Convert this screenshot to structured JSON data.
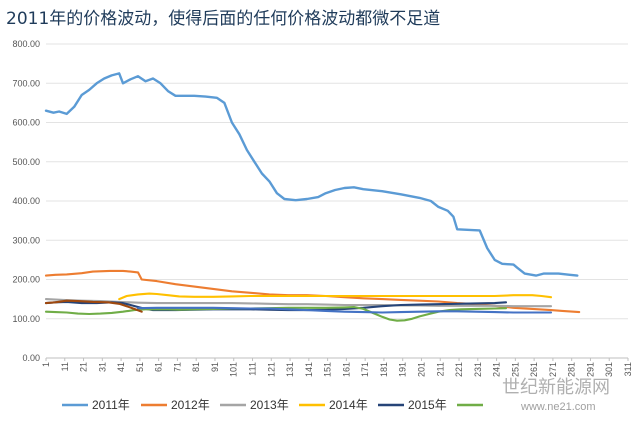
{
  "chart_data": {
    "type": "line",
    "title": "2011年的价格波动，使得后面的任何价格波动都微不足道",
    "xlabel": "",
    "ylabel": "",
    "ylim": [
      0,
      800
    ],
    "y_ticks": [
      "0.00",
      "100.00",
      "200.00",
      "300.00",
      "400.00",
      "500.00",
      "600.00",
      "700.00",
      "800.00"
    ],
    "xlim": [
      1,
      311
    ],
    "x_ticks": [
      "1",
      "11",
      "21",
      "31",
      "41",
      "51",
      "61",
      "71",
      "81",
      "91",
      "101",
      "111",
      "121",
      "131",
      "141",
      "151",
      "161",
      "171",
      "181",
      "191",
      "201",
      "211",
      "221",
      "231",
      "241",
      "251",
      "261",
      "271",
      "281",
      "291",
      "301",
      "311"
    ],
    "grid": "horizontal",
    "legend": "bottom",
    "series": [
      {
        "name": "2011年",
        "color": "#5b9bd5",
        "points": [
          [
            1,
            630
          ],
          [
            5,
            625
          ],
          [
            8,
            628
          ],
          [
            12,
            622
          ],
          [
            16,
            640
          ],
          [
            20,
            670
          ],
          [
            24,
            683
          ],
          [
            28,
            700
          ],
          [
            32,
            712
          ],
          [
            36,
            720
          ],
          [
            40,
            725
          ],
          [
            42,
            700
          ],
          [
            46,
            710
          ],
          [
            50,
            718
          ],
          [
            54,
            705
          ],
          [
            58,
            712
          ],
          [
            62,
            700
          ],
          [
            66,
            680
          ],
          [
            70,
            668
          ],
          [
            80,
            668
          ],
          [
            86,
            666
          ],
          [
            92,
            663
          ],
          [
            96,
            650
          ],
          [
            100,
            600
          ],
          [
            104,
            570
          ],
          [
            108,
            530
          ],
          [
            112,
            500
          ],
          [
            116,
            470
          ],
          [
            120,
            450
          ],
          [
            124,
            420
          ],
          [
            128,
            405
          ],
          [
            134,
            402
          ],
          [
            140,
            405
          ],
          [
            146,
            410
          ],
          [
            150,
            420
          ],
          [
            155,
            428
          ],
          [
            160,
            433
          ],
          [
            165,
            435
          ],
          [
            170,
            430
          ],
          [
            180,
            425
          ],
          [
            190,
            417
          ],
          [
            200,
            408
          ],
          [
            206,
            400
          ],
          [
            210,
            385
          ],
          [
            215,
            375
          ],
          [
            218,
            360
          ],
          [
            220,
            328
          ],
          [
            232,
            325
          ],
          [
            236,
            280
          ],
          [
            240,
            250
          ],
          [
            244,
            240
          ],
          [
            250,
            238
          ],
          [
            252,
            230
          ],
          [
            256,
            215
          ],
          [
            262,
            210
          ],
          [
            266,
            215
          ],
          [
            274,
            215
          ],
          [
            280,
            212
          ],
          [
            284,
            210
          ]
        ]
      },
      {
        "name": "2012年",
        "color": "#ed7d31",
        "points": [
          [
            1,
            210
          ],
          [
            6,
            212
          ],
          [
            12,
            213
          ],
          [
            20,
            216
          ],
          [
            26,
            220
          ],
          [
            35,
            222
          ],
          [
            42,
            222
          ],
          [
            46,
            220
          ],
          [
            50,
            218
          ],
          [
            52,
            200
          ],
          [
            60,
            196
          ],
          [
            70,
            188
          ],
          [
            80,
            182
          ],
          [
            90,
            176
          ],
          [
            100,
            170
          ],
          [
            110,
            166
          ],
          [
            120,
            162
          ],
          [
            130,
            160
          ],
          [
            140,
            160
          ],
          [
            150,
            158
          ],
          [
            160,
            155
          ],
          [
            170,
            152
          ],
          [
            180,
            150
          ],
          [
            190,
            148
          ],
          [
            200,
            146
          ],
          [
            210,
            144
          ],
          [
            220,
            140
          ],
          [
            230,
            137
          ],
          [
            240,
            133
          ],
          [
            250,
            128
          ],
          [
            260,
            125
          ],
          [
            270,
            122
          ],
          [
            276,
            120
          ],
          [
            282,
            118
          ],
          [
            285,
            117
          ]
        ]
      },
      {
        "name": "2013年",
        "color": "#a5a5a5",
        "points": [
          [
            1,
            150
          ],
          [
            10,
            148
          ],
          [
            20,
            146
          ],
          [
            30,
            145
          ],
          [
            40,
            143
          ],
          [
            50,
            141
          ],
          [
            60,
            140
          ],
          [
            70,
            140
          ],
          [
            80,
            140
          ],
          [
            90,
            140
          ],
          [
            100,
            140
          ],
          [
            110,
            139
          ],
          [
            120,
            138
          ],
          [
            130,
            137
          ],
          [
            140,
            137
          ],
          [
            150,
            136
          ],
          [
            160,
            135
          ],
          [
            170,
            135
          ],
          [
            180,
            135
          ],
          [
            190,
            134
          ],
          [
            200,
            134
          ],
          [
            210,
            133
          ],
          [
            220,
            133
          ],
          [
            230,
            133
          ],
          [
            240,
            133
          ],
          [
            250,
            132
          ],
          [
            260,
            132
          ],
          [
            270,
            132
          ]
        ]
      },
      {
        "name": "2014年",
        "color": "#ffc000",
        "points": [
          [
            40,
            150
          ],
          [
            44,
            158
          ],
          [
            50,
            162
          ],
          [
            56,
            164
          ],
          [
            60,
            163
          ],
          [
            66,
            160
          ],
          [
            72,
            157
          ],
          [
            80,
            156
          ],
          [
            90,
            156
          ],
          [
            100,
            157
          ],
          [
            110,
            158
          ],
          [
            120,
            158
          ],
          [
            130,
            158
          ],
          [
            140,
            158
          ],
          [
            150,
            158
          ],
          [
            160,
            158
          ],
          [
            170,
            158
          ],
          [
            180,
            158
          ],
          [
            190,
            158
          ],
          [
            200,
            158
          ],
          [
            210,
            158
          ],
          [
            220,
            158
          ],
          [
            230,
            158
          ],
          [
            240,
            158
          ],
          [
            250,
            160
          ],
          [
            260,
            160
          ],
          [
            265,
            158
          ],
          [
            270,
            155
          ]
        ]
      },
      {
        "name": "2015年",
        "color": "#264478",
        "points": [
          [
            1,
            140
          ],
          [
            6,
            142
          ],
          [
            12,
            143
          ],
          [
            20,
            140
          ],
          [
            28,
            140
          ],
          [
            36,
            142
          ],
          [
            42,
            140
          ],
          [
            46,
            135
          ],
          [
            50,
            130
          ],
          [
            54,
            125
          ],
          [
            58,
            122
          ],
          [
            62,
            122
          ],
          [
            70,
            122
          ],
          [
            80,
            123
          ],
          [
            90,
            124
          ],
          [
            100,
            124
          ],
          [
            110,
            124
          ],
          [
            120,
            123
          ],
          [
            130,
            122
          ],
          [
            140,
            122
          ],
          [
            150,
            123
          ],
          [
            160,
            125
          ],
          [
            170,
            128
          ],
          [
            180,
            132
          ],
          [
            190,
            135
          ],
          [
            200,
            136
          ],
          [
            210,
            137
          ],
          [
            220,
            138
          ],
          [
            230,
            139
          ],
          [
            240,
            140
          ],
          [
            246,
            142
          ]
        ]
      },
      {
        "name": "",
        "color": "#70ad47",
        "points": [
          [
            1,
            118
          ],
          [
            6,
            117
          ],
          [
            12,
            116
          ],
          [
            18,
            113
          ],
          [
            24,
            112
          ],
          [
            30,
            113
          ],
          [
            36,
            115
          ],
          [
            42,
            118
          ],
          [
            48,
            122
          ],
          [
            54,
            124
          ],
          [
            60,
            124
          ],
          [
            66,
            124
          ],
          [
            72,
            123
          ],
          [
            80,
            124
          ],
          [
            90,
            125
          ],
          [
            100,
            126
          ],
          [
            110,
            126
          ],
          [
            120,
            127
          ],
          [
            130,
            128
          ],
          [
            140,
            128
          ],
          [
            150,
            128
          ],
          [
            160,
            129
          ],
          [
            165,
            130
          ],
          [
            170,
            125
          ],
          [
            175,
            115
          ],
          [
            180,
            105
          ],
          [
            184,
            98
          ],
          [
            188,
            95
          ],
          [
            192,
            96
          ],
          [
            196,
            100
          ],
          [
            200,
            106
          ],
          [
            205,
            112
          ],
          [
            210,
            118
          ],
          [
            216,
            122
          ],
          [
            222,
            124
          ],
          [
            230,
            125
          ],
          [
            240,
            126
          ],
          [
            246,
            127
          ]
        ]
      },
      {
        "name": "",
        "color": "#4472c4",
        "points": [
          [
            50,
            127
          ],
          [
            60,
            128
          ],
          [
            70,
            128
          ],
          [
            80,
            128
          ],
          [
            90,
            128
          ],
          [
            100,
            127
          ],
          [
            110,
            126
          ],
          [
            120,
            126
          ],
          [
            130,
            124
          ],
          [
            140,
            122
          ],
          [
            150,
            120
          ],
          [
            160,
            118
          ],
          [
            170,
            117
          ],
          [
            180,
            116
          ],
          [
            190,
            117
          ],
          [
            200,
            118
          ],
          [
            210,
            119
          ],
          [
            220,
            119
          ],
          [
            230,
            118
          ],
          [
            240,
            117
          ],
          [
            250,
            116
          ],
          [
            260,
            116
          ],
          [
            270,
            116
          ]
        ]
      },
      {
        "name": "",
        "color": "#9e480e",
        "points": [
          [
            1,
            140
          ],
          [
            6,
            142
          ],
          [
            12,
            146
          ],
          [
            18,
            145
          ],
          [
            26,
            143
          ],
          [
            34,
            142
          ],
          [
            40,
            138
          ],
          [
            44,
            132
          ],
          [
            48,
            125
          ],
          [
            52,
            118
          ]
        ]
      }
    ]
  },
  "watermark": {
    "text": "世纪新能源网",
    "url": "www.ne21.com"
  }
}
